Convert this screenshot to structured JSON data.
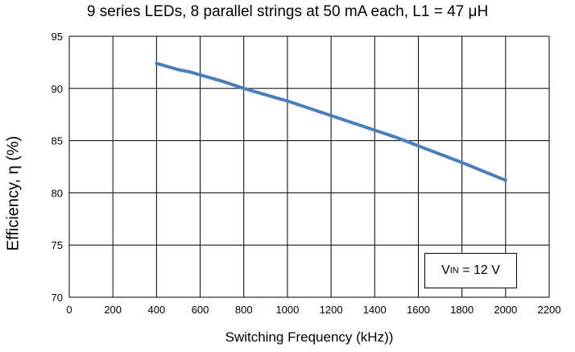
{
  "chart_data": {
    "type": "line",
    "title": "9 series LEDs, 8 parallel strings at 50 mA each, L1 = 47 μH",
    "xlabel": "Switching Frequency (kHz))",
    "ylabel": "Efficiency, η (%)",
    "xlim": [
      0,
      2200
    ],
    "ylim": [
      70,
      95
    ],
    "xticks": [
      0,
      200,
      400,
      600,
      800,
      1000,
      1200,
      1400,
      1600,
      1800,
      2000,
      2200
    ],
    "yticks": [
      70,
      75,
      80,
      85,
      90,
      95
    ],
    "grid": true,
    "line_color": "#4a7ebb",
    "series": [
      {
        "x": [
          400,
          450,
          500,
          550,
          600,
          700,
          800,
          1000,
          1200,
          1400,
          1500,
          1600,
          1800,
          2000
        ],
        "y": [
          92.4,
          92.1,
          91.8,
          91.6,
          91.3,
          90.7,
          90.0,
          88.8,
          87.4,
          86.0,
          85.3,
          84.5,
          82.9,
          81.2
        ]
      }
    ],
    "annotation": {
      "label": "V",
      "subscript": "IN",
      "text": " = 12 V"
    }
  }
}
